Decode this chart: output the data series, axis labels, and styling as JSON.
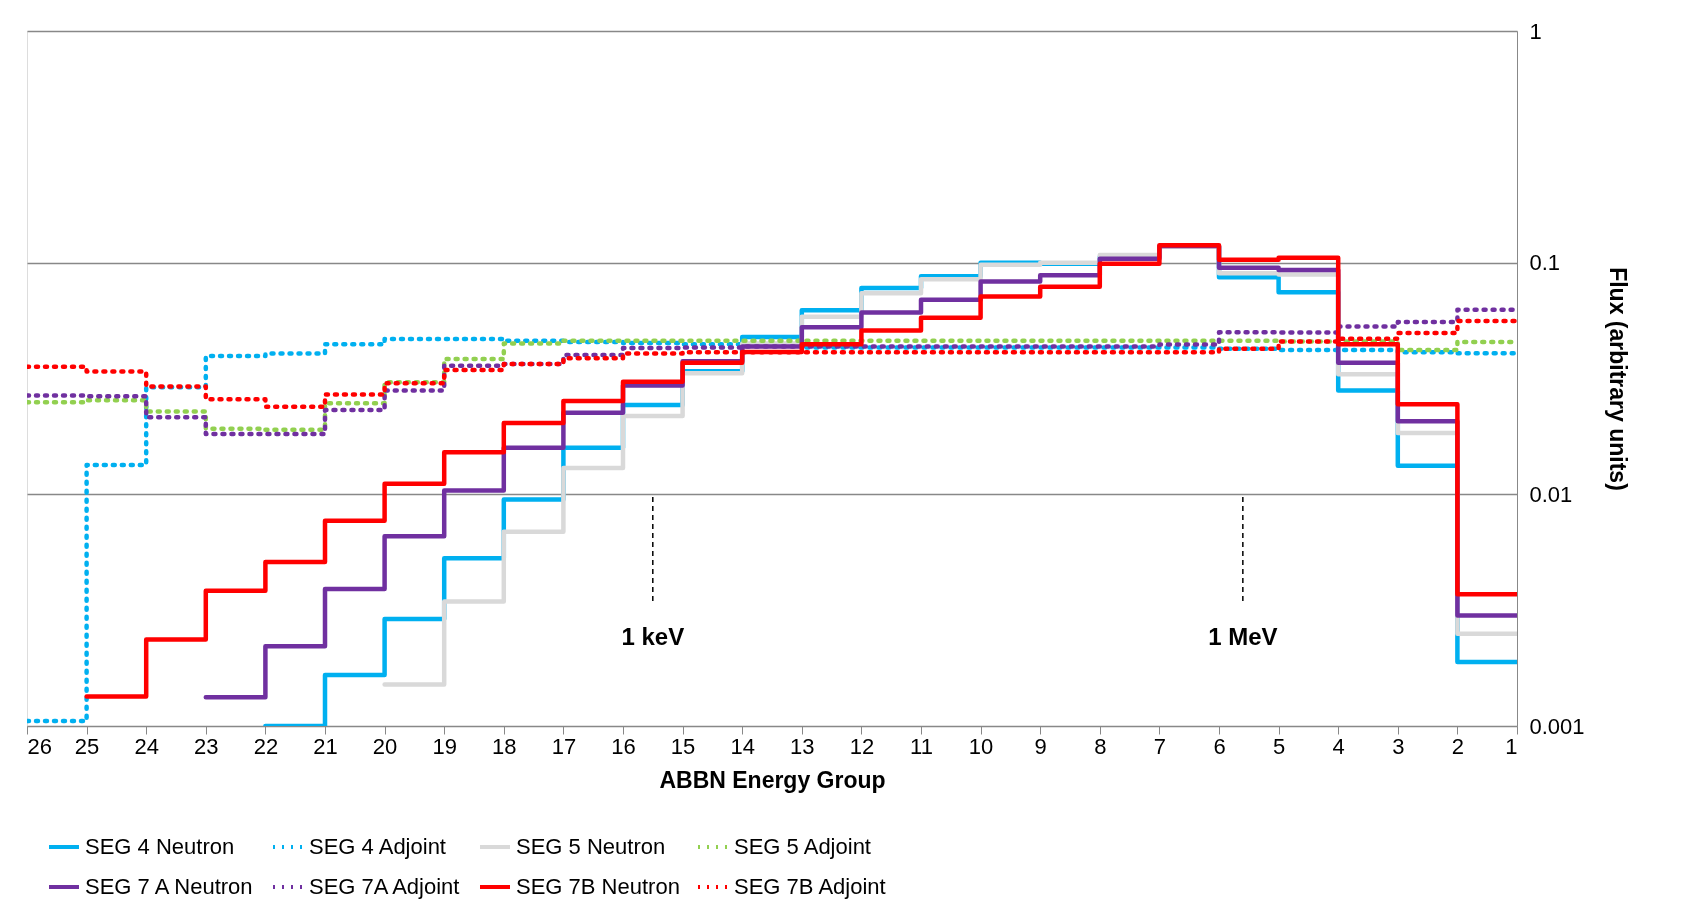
{
  "chart_data": {
    "type": "step",
    "xlabel": "ABBN Energy Group",
    "ylabel": "Flux (arbitrary units)",
    "x": [
      26,
      25,
      24,
      23,
      22,
      21,
      20,
      19,
      18,
      17,
      16,
      15,
      14,
      13,
      12,
      11,
      10,
      9,
      8,
      7,
      6,
      5,
      4,
      3,
      2,
      1
    ],
    "xlim": [
      26,
      1
    ],
    "xticks": [
      26,
      25,
      24,
      23,
      22,
      21,
      20,
      19,
      18,
      17,
      16,
      15,
      14,
      13,
      12,
      11,
      10,
      9,
      8,
      7,
      6,
      5,
      4,
      3,
      2,
      1
    ],
    "ylim": [
      0.001,
      1
    ],
    "yticks": [
      0.001,
      0.01,
      0.1,
      1
    ],
    "log": "y",
    "grid": "y",
    "legend": "bottom",
    "ref_lines": [
      {
        "axis": "x",
        "value": 15.5,
        "label": "1 keV",
        "line_style": "dashed",
        "color": "#000000"
      },
      {
        "axis": "x",
        "value": 5.6,
        "label": "1 MeV",
        "line_style": "dashed",
        "color": "#000000"
      }
    ],
    "series": [
      {
        "name": "SEG 4 Neutron",
        "color": "#00b0f0",
        "line_style": "solid",
        "values": [
          null,
          null,
          null,
          null,
          0.001,
          0.00166,
          0.0029,
          0.0053,
          0.0095,
          0.0159,
          0.0243,
          0.034,
          0.0478,
          0.0623,
          0.0778,
          0.0874,
          0.1,
          0.099,
          0.106,
          0.117,
          0.0865,
          0.0746,
          0.0281,
          0.0133,
          0.00189,
          0.00189
        ]
      },
      {
        "name": "SEG 4 Adjoint",
        "color": "#00b0f0",
        "line_style": "dotted",
        "values": [
          0.00105,
          0.0134,
          0.029,
          0.0395,
          0.0405,
          0.0444,
          0.0468,
          0.0468,
          0.046,
          0.0455,
          0.045,
          0.0445,
          0.044,
          0.043,
          0.043,
          0.043,
          0.043,
          0.043,
          0.043,
          0.043,
          0.0425,
          0.042,
          0.042,
          0.041,
          0.0406,
          0.0406
        ]
      },
      {
        "name": "SEG 5 Neutron",
        "color": "#d9d9d9",
        "line_style": "solid",
        "values": [
          null,
          null,
          null,
          null,
          null,
          null,
          0.00151,
          0.00345,
          0.0069,
          0.013,
          0.0218,
          0.0333,
          0.0448,
          0.0584,
          0.0738,
          0.0847,
          0.098,
          0.1,
          0.108,
          0.117,
          0.09,
          0.089,
          0.033,
          0.0184,
          0.0025,
          0.0025
        ]
      },
      {
        "name": "SEG 5 Adjoint",
        "color": "#92d050",
        "line_style": "dotted",
        "values": [
          0.025,
          0.0255,
          0.0228,
          0.0192,
          0.019,
          0.0247,
          0.0305,
          0.0384,
          0.0448,
          0.046,
          0.046,
          0.046,
          0.046,
          0.046,
          0.046,
          0.046,
          0.046,
          0.046,
          0.046,
          0.046,
          0.046,
          0.0457,
          0.0457,
          0.042,
          0.0455,
          0.0455
        ]
      },
      {
        "name": "SEG 7 A Neutron",
        "color": "#7030a0",
        "line_style": "solid",
        "values": [
          null,
          null,
          null,
          0.00133,
          0.00221,
          0.0039,
          0.0066,
          0.0104,
          0.0159,
          0.0225,
          0.0295,
          0.0375,
          0.0435,
          0.0526,
          0.061,
          0.0692,
          0.083,
          0.0883,
          0.104,
          0.118,
          0.095,
          0.093,
          0.037,
          0.0207,
          0.003,
          0.003
        ]
      },
      {
        "name": "SEG 7A Adjoint",
        "color": "#7030a0",
        "line_style": "dotted",
        "values": [
          0.0267,
          0.0265,
          0.0215,
          0.0182,
          0.0182,
          0.0231,
          0.0281,
          0.0359,
          0.0365,
          0.0399,
          0.0428,
          0.043,
          0.0435,
          0.0435,
          0.0435,
          0.0435,
          0.0435,
          0.0435,
          0.0435,
          0.0443,
          0.0501,
          0.05,
          0.053,
          0.0555,
          0.0627,
          0.0627
        ]
      },
      {
        "name": "SEG 7B Neutron",
        "color": "#ff0000",
        "line_style": "solid",
        "values": [
          null,
          0.00134,
          0.00236,
          0.00384,
          0.0051,
          0.0077,
          0.0111,
          0.0152,
          0.0203,
          0.0253,
          0.0306,
          0.037,
          0.0412,
          0.0444,
          0.0509,
          0.0578,
          0.0715,
          0.0787,
          0.099,
          0.119,
          0.103,
          0.105,
          0.0444,
          0.0245,
          0.0037,
          0.0037
        ]
      },
      {
        "name": "SEG 7B Adjoint",
        "color": "#ff0000",
        "line_style": "dotted",
        "values": [
          0.0355,
          0.0339,
          0.0292,
          0.0257,
          0.0239,
          0.027,
          0.0302,
          0.0344,
          0.0365,
          0.0387,
          0.0405,
          0.041,
          0.041,
          0.041,
          0.041,
          0.041,
          0.041,
          0.041,
          0.041,
          0.041,
          0.0425,
          0.0457,
          0.047,
          0.0497,
          0.056,
          0.056
        ]
      }
    ]
  }
}
